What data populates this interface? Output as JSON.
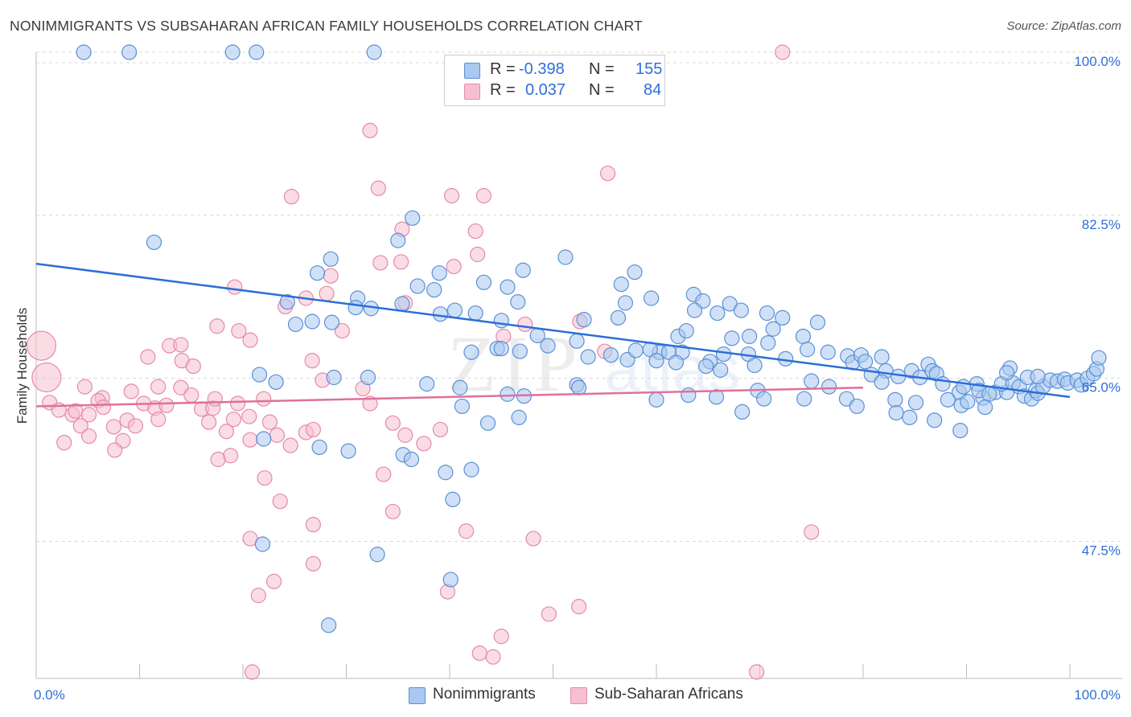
{
  "title": "NONIMMIGRANTS VS SUBSAHARAN AFRICAN FAMILY HOUSEHOLDS CORRELATION CHART",
  "source": "Source: ZipAtlas.com",
  "watermark": {
    "zip": "ZIP",
    "atlas": "atlas"
  },
  "legend": {
    "rows": [
      {
        "r_label": "R =",
        "r_value": "-0.398",
        "n_label": "N =",
        "n_value": "155"
      },
      {
        "r_label": "R =",
        "r_value": "0.037",
        "n_label": "N =",
        "n_value": "84"
      }
    ]
  },
  "bottom_legend": [
    "Nonimmigrants",
    "Sub-Saharan Africans"
  ],
  "colors": {
    "blue_fill": "#aac8f0",
    "blue_stroke": "#5b8fd6",
    "blue_line": "#2b6fd6",
    "pink_fill": "#f6c0d0",
    "pink_stroke": "#e58aa8",
    "pink_line": "#e0709a",
    "axis_text": "#2f6fd6",
    "grid": "#d8d8d8"
  },
  "chart_data": {
    "type": "scatter",
    "title": "NONIMMIGRANTS VS SUBSAHARAN AFRICAN FAMILY HOUSEHOLDS CORRELATION CHART",
    "xlabel": "",
    "ylabel": "Family Households",
    "xlim": [
      0,
      100
    ],
    "ylim": [
      34,
      100
    ],
    "x_tick_labels": [
      "0.0%",
      "100.0%"
    ],
    "y_ticks": [
      47.5,
      65.0,
      82.5,
      100.0
    ],
    "y_tick_labels": [
      "47.5%",
      "65.0%",
      "82.5%",
      "100.0%"
    ],
    "grid": "horizontal dashed",
    "legend_position": "top-center",
    "series": [
      {
        "name": "Nonimmigrants",
        "r": -0.398,
        "n": 155,
        "trend": {
          "x": [
            0,
            100
          ],
          "y": [
            77.3,
            63.0
          ]
        },
        "points": [
          [
            4.6,
            100
          ],
          [
            9,
            100
          ],
          [
            19,
            100
          ],
          [
            21.3,
            100
          ],
          [
            32.7,
            100
          ],
          [
            11.4,
            79.6
          ],
          [
            36.4,
            82.2
          ],
          [
            35,
            79.8
          ],
          [
            28.5,
            77.8
          ],
          [
            27.2,
            76.3
          ],
          [
            39,
            76.3
          ],
          [
            51.2,
            78
          ],
          [
            57.9,
            76.4
          ],
          [
            47.1,
            76.6
          ],
          [
            36.9,
            74.9
          ],
          [
            38.5,
            74.5
          ],
          [
            43.3,
            75.3
          ],
          [
            45.6,
            74.8
          ],
          [
            56.6,
            75.1
          ],
          [
            63.6,
            74
          ],
          [
            31.1,
            73.6
          ],
          [
            35.4,
            73
          ],
          [
            46.6,
            73.2
          ],
          [
            57,
            73.1
          ],
          [
            59.5,
            73.6
          ],
          [
            64.5,
            73.3
          ],
          [
            67.1,
            73
          ],
          [
            24.3,
            73.2
          ],
          [
            30.9,
            72.6
          ],
          [
            32.4,
            72.5
          ],
          [
            39.1,
            71.9
          ],
          [
            40.5,
            72.3
          ],
          [
            56.3,
            71.5
          ],
          [
            26.7,
            71.1
          ],
          [
            25.1,
            70.8
          ],
          [
            28.6,
            71
          ],
          [
            42.5,
            72
          ],
          [
            45,
            71.2
          ],
          [
            53,
            71.3
          ],
          [
            52.3,
            69
          ],
          [
            63.7,
            72.3
          ],
          [
            65.9,
            72
          ],
          [
            68.2,
            72.3
          ],
          [
            70.7,
            72
          ],
          [
            72.2,
            71.5
          ],
          [
            75.6,
            71
          ],
          [
            69,
            69.5
          ],
          [
            62.1,
            69.5
          ],
          [
            62.5,
            67.8
          ],
          [
            62.9,
            70.1
          ],
          [
            67.3,
            69.3
          ],
          [
            71.3,
            70.3
          ],
          [
            74.2,
            69.5
          ],
          [
            52.3,
            64.3
          ],
          [
            53.4,
            67.3
          ],
          [
            55.6,
            67.5
          ],
          [
            60.3,
            67.8
          ],
          [
            61.2,
            67.8
          ],
          [
            61.9,
            66.7
          ],
          [
            65.2,
            66.8
          ],
          [
            66.5,
            67.6
          ],
          [
            68.9,
            67.6
          ],
          [
            69.5,
            66.4
          ],
          [
            72.5,
            67.1
          ],
          [
            48.5,
            69.6
          ],
          [
            49.5,
            68.5
          ],
          [
            42.1,
            67.8
          ],
          [
            44.6,
            68.2
          ],
          [
            45,
            68.2
          ],
          [
            46.8,
            67.9
          ],
          [
            57.2,
            67
          ],
          [
            58,
            68
          ],
          [
            59.4,
            68.1
          ],
          [
            60,
            66.9
          ],
          [
            64.8,
            66.3
          ],
          [
            66.2,
            65.9
          ],
          [
            70.8,
            68.8
          ],
          [
            74.6,
            68.1
          ],
          [
            76.6,
            67.8
          ],
          [
            78.5,
            67.4
          ],
          [
            79,
            66.7
          ],
          [
            79.8,
            67.5
          ],
          [
            80.2,
            66.8
          ],
          [
            81.8,
            67.3
          ],
          [
            80.8,
            65.4
          ],
          [
            82.2,
            65.8
          ],
          [
            83.4,
            65.2
          ],
          [
            84.7,
            65.8
          ],
          [
            85.5,
            65.1
          ],
          [
            86.3,
            66.5
          ],
          [
            86.7,
            65.8
          ],
          [
            87.1,
            65.5
          ],
          [
            75,
            64.7
          ],
          [
            76.7,
            64.1
          ],
          [
            78.4,
            62.8
          ],
          [
            81.8,
            64.6
          ],
          [
            83.1,
            62.7
          ],
          [
            85.1,
            62.4
          ],
          [
            87.7,
            64.4
          ],
          [
            89.3,
            63.5
          ],
          [
            89.7,
            64.1
          ],
          [
            91.6,
            62.9
          ],
          [
            92.8,
            63.5
          ],
          [
            93.9,
            63.5
          ],
          [
            88.2,
            62.7
          ],
          [
            89.5,
            62.1
          ],
          [
            90.1,
            62.5
          ],
          [
            91,
            64.4
          ],
          [
            91.2,
            63.7
          ],
          [
            92.2,
            63.3
          ],
          [
            93.4,
            64.4
          ],
          [
            94.5,
            64.5
          ],
          [
            95.1,
            64.1
          ],
          [
            95.6,
            63.1
          ],
          [
            96.3,
            62.8
          ],
          [
            96.7,
            63.7
          ],
          [
            96.9,
            63.4
          ],
          [
            97.4,
            64.1
          ],
          [
            98.1,
            64.8
          ],
          [
            98.8,
            64.7
          ],
          [
            99.5,
            64.9
          ],
          [
            99.8,
            64.5
          ],
          [
            100.7,
            64.8
          ],
          [
            101.1,
            64.3
          ],
          [
            101.7,
            65
          ],
          [
            102.3,
            65.5
          ],
          [
            102.6,
            66
          ],
          [
            102.8,
            67.2
          ],
          [
            94.2,
            66.1
          ],
          [
            95.9,
            65.1
          ],
          [
            93.9,
            65.6
          ],
          [
            96.9,
            65.2
          ],
          [
            69.8,
            63.7
          ],
          [
            70.4,
            62.8
          ],
          [
            74.3,
            62.8
          ],
          [
            79.4,
            62
          ],
          [
            83.2,
            61.3
          ],
          [
            84.5,
            60.8
          ],
          [
            86.9,
            60.5
          ],
          [
            89.4,
            59.4
          ],
          [
            91.8,
            61.9
          ],
          [
            37.8,
            64.4
          ],
          [
            41,
            64
          ],
          [
            45.6,
            63.3
          ],
          [
            47.2,
            63.1
          ],
          [
            52.5,
            64
          ],
          [
            60,
            62.7
          ],
          [
            63.1,
            63.2
          ],
          [
            65.8,
            63
          ],
          [
            68.3,
            61.4
          ],
          [
            32.1,
            65.1
          ],
          [
            21.6,
            65.4
          ],
          [
            28.8,
            65.1
          ],
          [
            23.2,
            64.6
          ],
          [
            46.7,
            60.8
          ],
          [
            43.7,
            60.2
          ],
          [
            41.2,
            62
          ],
          [
            27.4,
            57.6
          ],
          [
            30.2,
            57.2
          ],
          [
            35.5,
            56.8
          ],
          [
            36.3,
            56.3
          ],
          [
            39.6,
            54.9
          ],
          [
            42.1,
            55.2
          ],
          [
            22,
            58.5
          ],
          [
            40.3,
            52
          ],
          [
            21.9,
            47.2
          ],
          [
            33,
            46.1
          ],
          [
            40.1,
            43.4
          ],
          [
            28.3,
            38.5
          ]
        ]
      },
      {
        "name": "Sub-Saharan Africans",
        "r": 0.037,
        "n": 84,
        "trend": {
          "x": [
            0,
            80
          ],
          "y": [
            62.0,
            64.0
          ]
        },
        "points": [
          [
            0.5,
            68.5
          ],
          [
            1,
            65.1
          ],
          [
            1.3,
            62.4
          ],
          [
            2.2,
            61.6
          ],
          [
            3.5,
            61.1
          ],
          [
            3.8,
            61.5
          ],
          [
            5.1,
            61.1
          ],
          [
            4.3,
            59.9
          ],
          [
            5.1,
            58.8
          ],
          [
            2.7,
            58.1
          ],
          [
            6.4,
            62.9
          ],
          [
            6,
            62.6
          ],
          [
            6.5,
            61.9
          ],
          [
            7.5,
            59.8
          ],
          [
            8.4,
            58.3
          ],
          [
            7.6,
            57.3
          ],
          [
            8.8,
            60.5
          ],
          [
            9.6,
            59.9
          ],
          [
            10.4,
            62.3
          ],
          [
            11.5,
            61.8
          ],
          [
            11.8,
            60.6
          ],
          [
            12.6,
            62.1
          ],
          [
            4.7,
            64.1
          ],
          [
            9.2,
            63.6
          ],
          [
            11.8,
            64.1
          ],
          [
            14,
            64
          ],
          [
            15,
            63.2
          ],
          [
            10.8,
            67.3
          ],
          [
            12.9,
            68.5
          ],
          [
            14.1,
            66.9
          ],
          [
            15.2,
            66.3
          ],
          [
            14,
            68.6
          ],
          [
            16,
            61.7
          ],
          [
            16.7,
            60.3
          ],
          [
            17.1,
            61.8
          ],
          [
            18.4,
            59.3
          ],
          [
            19.1,
            60.6
          ],
          [
            20.6,
            60.9
          ],
          [
            20.7,
            58.4
          ],
          [
            18.8,
            56.7
          ],
          [
            17.6,
            56.3
          ],
          [
            17.3,
            62.8
          ],
          [
            19.5,
            62.3
          ],
          [
            22.6,
            60.3
          ],
          [
            23.3,
            58.9
          ],
          [
            24.6,
            57.8
          ],
          [
            26.1,
            59.2
          ],
          [
            26.8,
            59.5
          ],
          [
            17.5,
            70.6
          ],
          [
            19.2,
            74.8
          ],
          [
            19.6,
            70.1
          ],
          [
            20.7,
            69.1
          ],
          [
            22,
            62.8
          ],
          [
            26.7,
            66.9
          ],
          [
            29.6,
            70.1
          ],
          [
            27.7,
            64.8
          ],
          [
            24.1,
            72.7
          ],
          [
            26.1,
            73.6
          ],
          [
            28.1,
            74.1
          ],
          [
            31.6,
            63.9
          ],
          [
            32.3,
            62.3
          ],
          [
            34.5,
            60.2
          ],
          [
            35.7,
            58.9
          ],
          [
            37.5,
            58
          ],
          [
            39.1,
            59.5
          ],
          [
            28.5,
            76
          ],
          [
            35.3,
            77.5
          ],
          [
            40.4,
            77
          ],
          [
            42.7,
            78.3
          ],
          [
            33.3,
            77.4
          ],
          [
            45.2,
            69.5
          ],
          [
            47.3,
            70.8
          ],
          [
            52.6,
            71.1
          ],
          [
            55,
            67.9
          ],
          [
            35.7,
            73.1
          ],
          [
            35.4,
            81
          ],
          [
            42.5,
            80.8
          ],
          [
            33.1,
            85.4
          ],
          [
            24.7,
            84.5
          ],
          [
            40.2,
            84.6
          ],
          [
            43.3,
            84.6
          ],
          [
            55.3,
            87
          ],
          [
            32.3,
            91.6
          ],
          [
            72.2,
            100
          ],
          [
            22.1,
            54.3
          ],
          [
            26.8,
            49.3
          ],
          [
            21.5,
            41.7
          ],
          [
            23,
            43.2
          ],
          [
            26.8,
            45.1
          ],
          [
            23.6,
            51.8
          ],
          [
            33.6,
            54.7
          ],
          [
            34.5,
            50.7
          ],
          [
            39.8,
            42.1
          ],
          [
            41.6,
            48.6
          ],
          [
            20.7,
            47.8
          ],
          [
            48.1,
            47.8
          ],
          [
            49.6,
            39.7
          ],
          [
            52.5,
            40.5
          ],
          [
            45,
            37.3
          ],
          [
            44.2,
            35.1
          ],
          [
            42.9,
            35.5
          ],
          [
            20.9,
            31.4
          ],
          [
            69.7,
            32.1
          ],
          [
            75,
            48.5
          ]
        ]
      }
    ]
  }
}
